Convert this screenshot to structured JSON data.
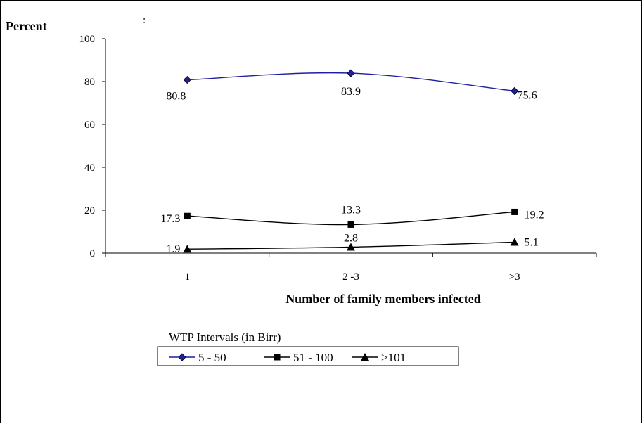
{
  "stray_mark": ":",
  "chart_data": {
    "type": "line",
    "title": "",
    "ylabel": "Percent",
    "xlabel": "Number of family members infected",
    "categories": [
      "1",
      "2 -3",
      ">3"
    ],
    "ylim": [
      0,
      100
    ],
    "yticks": [
      0,
      20,
      40,
      60,
      80,
      100
    ],
    "grid": false,
    "legend_title": "WTP Intervals (in Birr)",
    "legend_position": "bottom-left",
    "series": [
      {
        "name": "5 - 50",
        "values": [
          80.8,
          83.9,
          75.6
        ],
        "labels": [
          "80.8",
          "83.9",
          "75.6"
        ],
        "color": "#1f1fa0",
        "marker": "diamond"
      },
      {
        "name": "51 - 100",
        "values": [
          17.3,
          13.3,
          19.2
        ],
        "labels": [
          "17.3",
          "13.3",
          "19.2"
        ],
        "color": "#000000",
        "marker": "square"
      },
      {
        "name": ">101",
        "values": [
          1.9,
          2.8,
          5.1
        ],
        "labels": [
          "1.9",
          "2.8",
          "5.1"
        ],
        "color": "#000000",
        "marker": "triangle"
      }
    ]
  }
}
